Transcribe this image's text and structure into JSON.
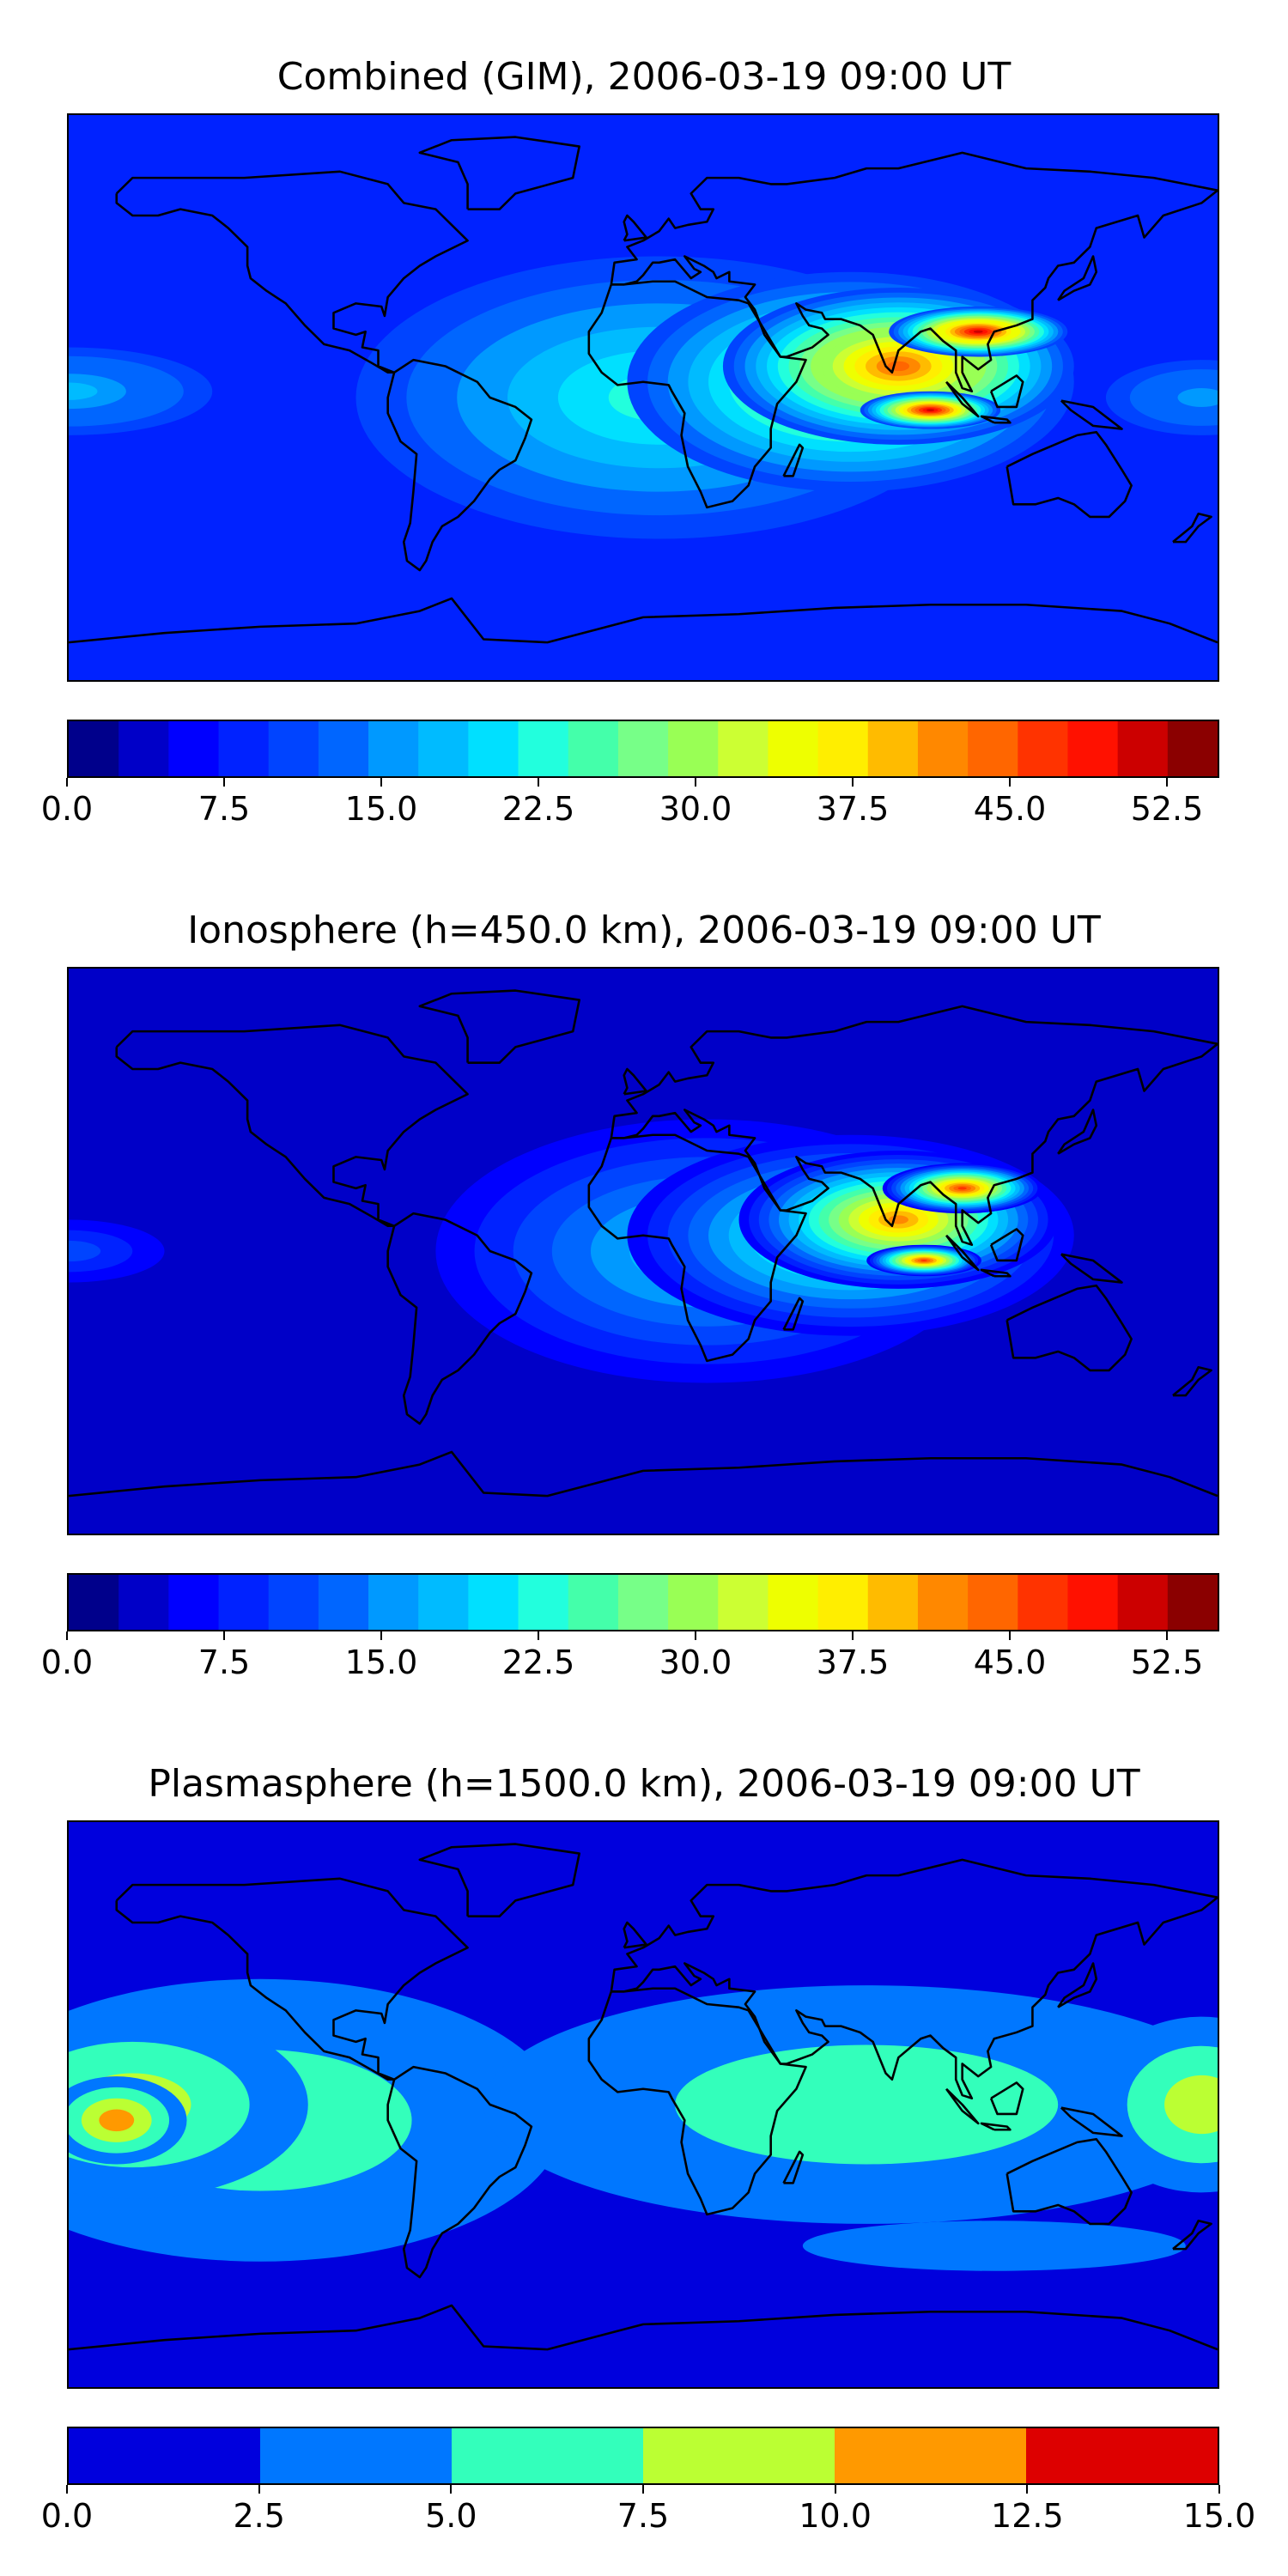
{
  "panels": [
    {
      "title": "Combined (GIM), 2006-03-19 09:00 UT",
      "colorbar": {
        "min": 0,
        "max": 55,
        "step": 2.5,
        "ticks": [
          "0.0",
          "7.5",
          "15.0",
          "22.5",
          "30.0",
          "37.5",
          "45.0",
          "52.5"
        ],
        "tick_values": [
          0,
          7.5,
          15,
          22.5,
          30,
          37.5,
          45,
          52.5
        ],
        "colors": [
          "#00008b",
          "#0000c8",
          "#0000ff",
          "#0022ff",
          "#0044ff",
          "#0066ff",
          "#0099ff",
          "#00bbff",
          "#00e0ff",
          "#22ffdd",
          "#44ffaa",
          "#77ff88",
          "#99ff55",
          "#ccff33",
          "#eeff00",
          "#ffee00",
          "#ffbb00",
          "#ff8800",
          "#ff6600",
          "#ff3300",
          "#ff1100",
          "#cc0000",
          "#8b0000"
        ]
      },
      "blobs": [
        {
          "lon": 5,
          "lat": 0,
          "rx": 95,
          "ry": 45,
          "level": 0.42
        },
        {
          "lon": 65,
          "lat": 5,
          "rx": 70,
          "ry": 35,
          "level": 0.62
        },
        {
          "lon": 80,
          "lat": 10,
          "rx": 55,
          "ry": 25,
          "level": 0.82
        },
        {
          "lon": 105,
          "lat": 21,
          "rx": 28,
          "ry": 8,
          "level": 0.95
        },
        {
          "lon": 90,
          "lat": -4,
          "rx": 22,
          "ry": 6,
          "level": 0.92
        },
        {
          "lon": -180,
          "lat": 2,
          "rx": 45,
          "ry": 14,
          "level": 0.34
        },
        {
          "lon": 175,
          "lat": 0,
          "rx": 30,
          "ry": 12,
          "level": 0.3
        }
      ],
      "base_level": 0.14
    },
    {
      "title": "Ionosphere  (h=450.0 km), 2006-03-19 09:00 UT",
      "colorbar": {
        "min": 0,
        "max": 55,
        "step": 2.5,
        "ticks": [
          "0.0",
          "7.5",
          "15.0",
          "22.5",
          "30.0",
          "37.5",
          "45.0",
          "52.5"
        ],
        "tick_values": [
          0,
          7.5,
          15,
          22.5,
          30,
          37.5,
          45,
          52.5
        ],
        "colors": [
          "#00008b",
          "#0000c8",
          "#0000ff",
          "#0022ff",
          "#0044ff",
          "#0066ff",
          "#0099ff",
          "#00bbff",
          "#00e0ff",
          "#22ffdd",
          "#44ffaa",
          "#77ff88",
          "#99ff55",
          "#ccff33",
          "#eeff00",
          "#ffee00",
          "#ffbb00",
          "#ff8800",
          "#ff6600",
          "#ff3300",
          "#ff1100",
          "#cc0000",
          "#8b0000"
        ]
      },
      "blobs": [
        {
          "lon": 20,
          "lat": 0,
          "rx": 85,
          "ry": 42,
          "level": 0.36
        },
        {
          "lon": 65,
          "lat": 5,
          "rx": 70,
          "ry": 32,
          "level": 0.55
        },
        {
          "lon": 80,
          "lat": 10,
          "rx": 50,
          "ry": 22,
          "level": 0.74
        },
        {
          "lon": 100,
          "lat": 20,
          "rx": 25,
          "ry": 8,
          "level": 0.86
        },
        {
          "lon": 88,
          "lat": -3,
          "rx": 18,
          "ry": 5,
          "level": 0.85
        },
        {
          "lon": -180,
          "lat": 0,
          "rx": 30,
          "ry": 10,
          "level": 0.2
        }
      ],
      "base_level": 0.06
    },
    {
      "title": "Plasmasphere (h=1500.0 km), 2006-03-19 09:00 UT",
      "colorbar": {
        "min": 0,
        "max": 15,
        "step": 2.5,
        "ticks": [
          "0.0",
          "2.5",
          "5.0",
          "7.5",
          "10.0",
          "12.5",
          "15.0"
        ],
        "tick_values": [
          0,
          2.5,
          5,
          7.5,
          10,
          12.5,
          15
        ],
        "colors": [
          "#0000dd",
          "#0077ff",
          "#33ffbb",
          "#bbff33",
          "#ff9900",
          "#dd0000"
        ]
      },
      "blobs": [
        {
          "lon": -120,
          "lat": -5,
          "rx": 95,
          "ry": 45,
          "level": 0.45
        },
        {
          "lon": 70,
          "lat": 0,
          "rx": 120,
          "ry": 38,
          "level": 0.4
        },
        {
          "lon": -160,
          "lat": 0,
          "rx": 55,
          "ry": 30,
          "level": 0.6
        },
        {
          "lon": 175,
          "lat": 0,
          "rx": 35,
          "ry": 28,
          "level": 0.57
        },
        {
          "lon": -165,
          "lat": -5,
          "rx": 22,
          "ry": 14,
          "level": 0.75
        },
        {
          "lon": 110,
          "lat": -45,
          "rx": 60,
          "ry": 8,
          "level": 0.3
        }
      ],
      "base_level": 0.1
    }
  ]
}
